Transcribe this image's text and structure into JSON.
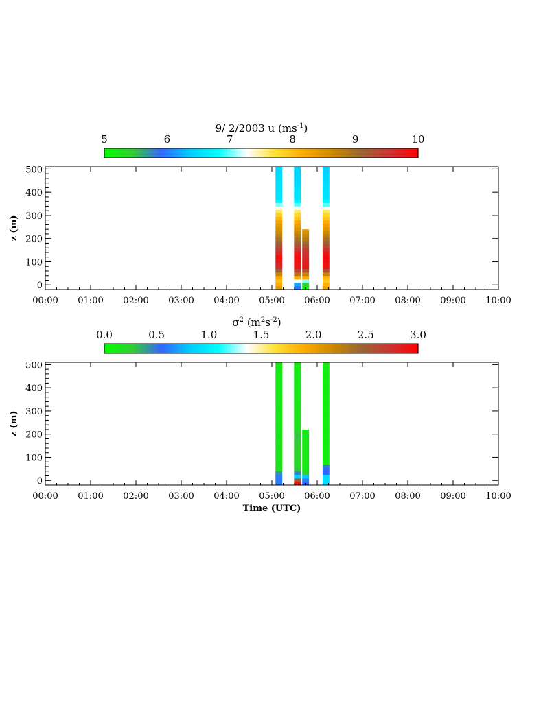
{
  "chart_data": [
    {
      "type": "heatmap",
      "title": "9/ 2/2003  u   (ms",
      "title_superscript": "-1",
      "title_close": ")",
      "colorbar_ticks": [
        "5",
        "6",
        "7",
        "8",
        "9",
        "10"
      ],
      "colorbar_range": [
        5,
        10
      ],
      "ylabel": "z (m)",
      "xlabel": "",
      "x_ticks": [
        "00:00",
        "01:00",
        "02:00",
        "03:00",
        "04:00",
        "05:00",
        "06:00",
        "07:00",
        "08:00",
        "09:00",
        "10:00"
      ],
      "y_ticks": [
        "0",
        "100",
        "200",
        "300",
        "400",
        "500"
      ],
      "xlim_hours": [
        0,
        10
      ],
      "ylim": [
        -20,
        510
      ],
      "time_bin_hours": 0.15,
      "height_bin_m": 15,
      "columns": [
        {
          "time": 5.08,
          "profile": [
            [
              -20,
              8.5
            ],
            [
              0,
              8.2
            ],
            [
              25,
              7.9
            ],
            [
              45,
              8.6
            ],
            [
              75,
              9.6
            ],
            [
              120,
              9.9
            ],
            [
              175,
              9.2
            ],
            [
              230,
              8.6
            ],
            [
              280,
              8.2
            ],
            [
              320,
              7.6
            ],
            [
              345,
              7.1
            ],
            [
              370,
              6.6
            ],
            [
              510,
              6.5
            ]
          ]
        },
        {
          "time": 5.49,
          "profile": [
            [
              -20,
              6.0
            ],
            [
              0,
              6.0
            ],
            [
              25,
              7.8
            ],
            [
              45,
              8.8
            ],
            [
              75,
              9.8
            ],
            [
              130,
              9.9
            ],
            [
              170,
              9.3
            ],
            [
              220,
              8.7
            ],
            [
              270,
              8.2
            ],
            [
              320,
              7.6
            ],
            [
              345,
              7.0
            ],
            [
              370,
              6.6
            ],
            [
              510,
              6.4
            ]
          ]
        },
        {
          "time": 5.67,
          "profile": [
            [
              -20,
              5.1
            ],
            [
              0,
              5.1
            ],
            [
              25,
              7.9
            ],
            [
              45,
              8.6
            ],
            [
              75,
              9.8
            ],
            [
              150,
              9.5
            ],
            [
              200,
              8.8
            ],
            [
              240,
              8.4
            ]
          ]
        },
        {
          "time": 6.12,
          "profile": [
            [
              -20,
              8.4
            ],
            [
              0,
              8.2
            ],
            [
              25,
              7.8
            ],
            [
              45,
              8.6
            ],
            [
              75,
              9.8
            ],
            [
              130,
              9.9
            ],
            [
              170,
              9.3
            ],
            [
              220,
              8.7
            ],
            [
              270,
              8.2
            ],
            [
              320,
              7.6
            ],
            [
              345,
              7.0
            ],
            [
              370,
              6.6
            ],
            [
              510,
              6.4
            ]
          ]
        }
      ]
    },
    {
      "type": "heatmap",
      "title": "σ",
      "title_superscript": "2",
      "title_units": " (m",
      "title_units_sup1": "2",
      "title_units_mid": "s",
      "title_units_sup2": "-2",
      "title_close": ")",
      "colorbar_ticks": [
        "0.0",
        "0.5",
        "1.0",
        "1.5",
        "2.0",
        "2.5",
        "3.0"
      ],
      "colorbar_range": [
        0,
        3
      ],
      "ylabel": "z (m)",
      "xlabel": "Time (UTC)",
      "x_ticks": [
        "00:00",
        "01:00",
        "02:00",
        "03:00",
        "04:00",
        "05:00",
        "06:00",
        "07:00",
        "08:00",
        "09:00",
        "10:00"
      ],
      "y_ticks": [
        "0",
        "100",
        "200",
        "300",
        "400",
        "500"
      ],
      "xlim_hours": [
        0,
        10
      ],
      "ylim": [
        -20,
        510
      ],
      "time_bin_hours": 0.15,
      "height_bin_m": 15,
      "columns": [
        {
          "time": 5.08,
          "profile": [
            [
              -20,
              0.6
            ],
            [
              30,
              0.6
            ],
            [
              35,
              0.25
            ],
            [
              60,
              0.15
            ],
            [
              510,
              0.1
            ]
          ]
        },
        {
          "time": 5.49,
          "profile": [
            [
              -20,
              2.9
            ],
            [
              0,
              2.9
            ],
            [
              15,
              0.9
            ],
            [
              35,
              0.4
            ],
            [
              60,
              0.2
            ],
            [
              80,
              0.22
            ],
            [
              200,
              0.3
            ],
            [
              230,
              0.15
            ],
            [
              510,
              0.1
            ]
          ]
        },
        {
          "time": 5.67,
          "profile": [
            [
              -20,
              0.55
            ],
            [
              0,
              0.55
            ],
            [
              15,
              0.9
            ],
            [
              35,
              0.15
            ],
            [
              60,
              0.12
            ],
            [
              220,
              0.12
            ]
          ]
        },
        {
          "time": 6.12,
          "profile": [
            [
              -20,
              0.9
            ],
            [
              25,
              0.9
            ],
            [
              30,
              0.55
            ],
            [
              60,
              0.55
            ],
            [
              75,
              0.1
            ],
            [
              510,
              0.1
            ]
          ]
        }
      ]
    }
  ],
  "colormap": [
    "#00ff00",
    "#33cc33",
    "#3366ff",
    "#00ccff",
    "#00ffff",
    "#ffffff",
    "#ffe033",
    "#ffaa00",
    "#cc8800",
    "#996633",
    "#cc3333",
    "#ff0000"
  ]
}
